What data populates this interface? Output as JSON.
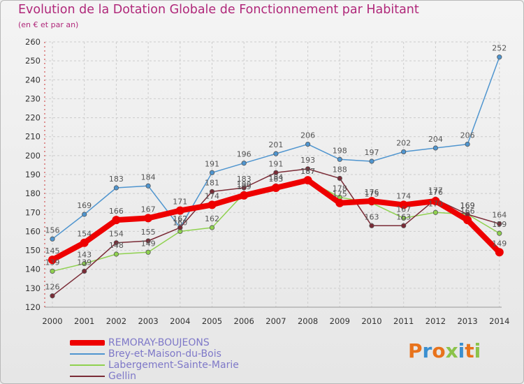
{
  "title": "Evolution de la Dotation Globale de Fonctionnement par Habitant",
  "subtitle": "(en € et par an)",
  "logo_text": "Proxiti",
  "colors": {
    "title": "#b0287a",
    "grid": "#cccccc",
    "axis_label": "#333333",
    "data_label": "#555555",
    "legend_text": "#7e78c8"
  },
  "chart_data": {
    "type": "line",
    "title": "Evolution de la Dotation Globale de Fonctionnement par Habitant",
    "subtitle": "(en € et par an)",
    "xlabel": "",
    "ylabel": "",
    "categories": [
      "2000",
      "2001",
      "2002",
      "2003",
      "2004",
      "2005",
      "2006",
      "2007",
      "2008",
      "2009",
      "2010",
      "2011",
      "2012",
      "2013",
      "2014"
    ],
    "yticks": [
      120,
      130,
      140,
      150,
      160,
      170,
      180,
      190,
      200,
      210,
      220,
      230,
      240,
      250,
      260
    ],
    "ylim": [
      120,
      260
    ],
    "grid": true,
    "legend_position": "bottom-left",
    "series": [
      {
        "name": "REMORAY-BOUJEONS",
        "color": "#ee0000",
        "values": [
          145,
          154,
          166,
          167,
          171,
          174,
          179,
          183,
          187,
          175,
          176,
          174,
          176,
          166,
          149
        ],
        "labels": [
          "145",
          "154",
          "166",
          "167",
          "171",
          "174",
          "179",
          "183",
          "187",
          "175",
          "176",
          "174",
          "176",
          "166",
          "149"
        ]
      },
      {
        "name": "Brey-et-Maison-du-Bois",
        "color": "#4f95cf",
        "values": [
          156,
          169,
          183,
          184,
          162,
          191,
          196,
          201,
          206,
          198,
          197,
          202,
          204,
          206,
          252
        ],
        "labels": [
          "156",
          "169",
          "183",
          "184",
          "162",
          "191",
          "196",
          "201",
          "206",
          "198",
          "197",
          "202",
          "204",
          "206",
          "252"
        ]
      },
      {
        "name": "Labergement-Sainte-Marie",
        "color": "#8fd14f",
        "values": [
          139,
          143,
          148,
          149,
          160,
          162,
          180,
          184,
          187,
          178,
          175,
          167,
          170,
          169,
          159
        ],
        "labels": [
          "139",
          "143",
          "148",
          "149",
          "160",
          "162",
          "180",
          "184",
          "187",
          "178",
          "175",
          "167",
          "170",
          "169",
          "159"
        ]
      },
      {
        "name": "Gellin",
        "color": "#7a2b36",
        "values": [
          126,
          139,
          154,
          155,
          162,
          181,
          183,
          191,
          193,
          188,
          163,
          163,
          177,
          169,
          164
        ],
        "labels": [
          "126",
          "139",
          "154",
          "155",
          "162",
          "181",
          "183",
          "191",
          "193",
          "188",
          "163",
          "163",
          "177",
          "169",
          "164"
        ]
      }
    ]
  }
}
